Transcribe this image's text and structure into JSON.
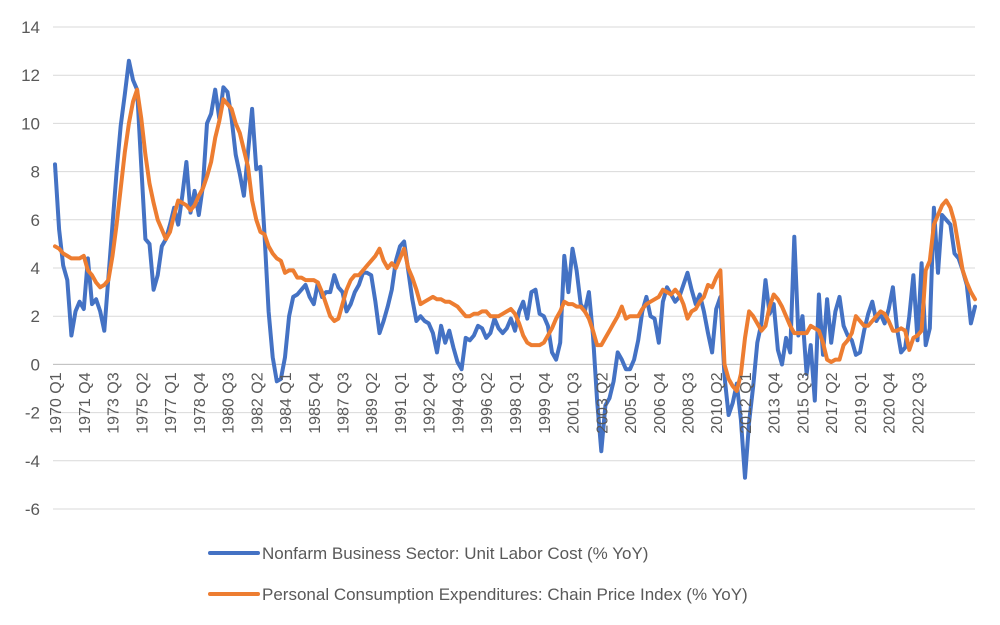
{
  "chart_data": {
    "type": "line",
    "title": "",
    "xlabel": "",
    "ylabel": "",
    "ylim": [
      -6,
      14
    ],
    "y_ticks": [
      -6,
      -4,
      -2,
      0,
      2,
      4,
      6,
      8,
      10,
      12,
      14
    ],
    "grid": true,
    "legend_position": "bottom",
    "x_tick_labels": [
      "1970 Q1",
      "1971 Q4",
      "1973 Q3",
      "1975 Q2",
      "1977 Q1",
      "1978 Q4",
      "1980 Q3",
      "1982 Q2",
      "1984 Q1",
      "1985 Q4",
      "1987 Q3",
      "1989 Q2",
      "1991 Q1",
      "1992 Q4",
      "1994 Q3",
      "1996 Q2",
      "1998 Q1",
      "1999 Q4",
      "2001 Q3",
      "2003 Q2",
      "2005 Q1",
      "2006 Q4",
      "2008 Q3",
      "2010 Q2",
      "2012 Q1",
      "2013 Q4",
      "2015 Q3",
      "2017 Q2",
      "2019 Q1",
      "2020 Q4",
      "2022 Q3"
    ],
    "x_start_year": 1970,
    "x_start_quarter": 1,
    "series": [
      {
        "name": "Nonfarm Business Sector: Unit Labor Cost (% YoY)",
        "color": "#4472C4",
        "values": [
          8.3,
          5.6,
          4.1,
          3.5,
          1.2,
          2.2,
          2.6,
          2.3,
          4.4,
          2.5,
          2.7,
          2.2,
          1.4,
          3.6,
          5.8,
          8.0,
          9.9,
          11.2,
          12.6,
          11.8,
          11.4,
          8.2,
          5.2,
          5.0,
          3.1,
          3.7,
          4.9,
          5.2,
          5.8,
          6.5,
          5.8,
          7.0,
          8.4,
          6.3,
          7.2,
          6.2,
          7.4,
          10.0,
          10.4,
          11.4,
          10.2,
          11.5,
          11.3,
          10.2,
          8.7,
          7.9,
          7.0,
          8.8,
          10.6,
          8.1,
          8.2,
          5.4,
          2.2,
          0.3,
          -0.7,
          -0.6,
          0.3,
          2.0,
          2.8,
          2.9,
          3.1,
          3.3,
          2.8,
          2.5,
          3.4,
          2.8,
          3.0,
          3.0,
          3.7,
          3.2,
          3.0,
          2.2,
          2.5,
          3.0,
          3.3,
          3.8,
          3.8,
          3.7,
          2.6,
          1.3,
          1.8,
          2.4,
          3.1,
          4.3,
          4.9,
          5.1,
          3.9,
          2.7,
          1.8,
          2.0,
          1.8,
          1.7,
          1.3,
          0.5,
          1.6,
          0.9,
          1.4,
          0.7,
          0.1,
          -0.2,
          1.1,
          1.0,
          1.2,
          1.6,
          1.5,
          1.1,
          1.3,
          1.9,
          1.5,
          1.3,
          1.5,
          1.9,
          1.4,
          2.2,
          2.6,
          1.9,
          3.0,
          3.1,
          2.1,
          2.0,
          1.6,
          0.5,
          0.2,
          0.9,
          4.5,
          3.0,
          4.8,
          3.9,
          2.5,
          2.2,
          3.0,
          1.2,
          -1.5,
          -3.6,
          -1.7,
          -1.4,
          -0.7,
          0.5,
          0.2,
          -0.2,
          -0.2,
          0.2,
          1.0,
          2.2,
          2.8,
          2.0,
          1.9,
          0.9,
          2.6,
          3.2,
          2.9,
          2.6,
          2.8,
          3.3,
          3.8,
          3.1,
          2.5,
          2.9,
          2.2,
          1.3,
          0.5,
          2.3,
          2.8,
          -0.5,
          -2.1,
          -1.6,
          -0.8,
          -2.3,
          -4.7,
          -2.4,
          -0.9,
          0.9,
          1.7,
          3.5,
          2.1,
          2.5,
          0.6,
          0.0,
          1.1,
          0.5,
          5.3,
          1.2,
          2.0,
          -0.4,
          0.8,
          -1.5,
          2.9,
          0.4,
          2.7,
          0.9,
          2.2,
          2.8,
          1.6,
          1.2,
          1.0,
          0.4,
          0.5,
          1.4,
          2.1,
          2.6,
          1.8,
          2.1,
          1.7,
          2.3,
          3.2,
          1.5,
          0.5,
          0.7,
          2.0,
          3.7,
          1.0,
          4.2,
          0.8,
          1.5,
          6.5,
          3.8,
          6.2,
          6.0,
          5.8,
          4.6,
          4.4,
          3.9,
          3.3,
          1.7,
          2.4
        ]
      },
      {
        "name": "Personal Consumption Expenditures: Chain Price Index (% YoY)",
        "color": "#ED7D31",
        "values": [
          4.9,
          4.8,
          4.6,
          4.5,
          4.4,
          4.4,
          4.4,
          4.5,
          3.9,
          3.7,
          3.4,
          3.2,
          3.3,
          3.5,
          4.5,
          5.8,
          7.3,
          8.8,
          10.0,
          10.9,
          11.4,
          10.2,
          8.7,
          7.5,
          6.7,
          6.0,
          5.6,
          5.2,
          5.5,
          6.2,
          6.8,
          6.7,
          6.6,
          6.4,
          6.6,
          7.0,
          7.3,
          7.8,
          8.4,
          9.4,
          10.1,
          11.0,
          10.8,
          10.6,
          10.0,
          9.6,
          8.9,
          8.2,
          6.8,
          6.0,
          5.5,
          5.4,
          4.9,
          4.6,
          4.4,
          4.3,
          3.8,
          3.9,
          3.9,
          3.6,
          3.6,
          3.5,
          3.5,
          3.5,
          3.4,
          3.0,
          2.5,
          2.0,
          1.8,
          1.9,
          2.5,
          3.1,
          3.5,
          3.7,
          3.7,
          3.9,
          4.1,
          4.3,
          4.5,
          4.8,
          4.3,
          4.0,
          4.2,
          4.0,
          4.4,
          4.8,
          4.0,
          3.6,
          3.1,
          2.5,
          2.6,
          2.7,
          2.8,
          2.7,
          2.7,
          2.6,
          2.6,
          2.5,
          2.4,
          2.2,
          2.0,
          2.0,
          2.1,
          2.1,
          2.2,
          2.2,
          2.0,
          2.0,
          2.0,
          2.1,
          2.2,
          2.3,
          2.1,
          1.7,
          1.2,
          0.9,
          0.8,
          0.8,
          0.8,
          0.9,
          1.2,
          1.5,
          1.9,
          2.2,
          2.6,
          2.5,
          2.5,
          2.4,
          2.4,
          2.2,
          1.9,
          1.4,
          0.8,
          0.8,
          1.1,
          1.4,
          1.7,
          2.0,
          2.4,
          1.9,
          2.0,
          2.0,
          2.0,
          2.3,
          2.5,
          2.6,
          2.7,
          2.8,
          3.1,
          3.0,
          2.9,
          3.1,
          2.9,
          2.5,
          1.9,
          2.2,
          2.3,
          2.6,
          2.8,
          3.3,
          3.2,
          3.6,
          3.9,
          0.0,
          -0.6,
          -0.9,
          -1.1,
          -0.4,
          1.1,
          2.2,
          2.0,
          1.7,
          1.4,
          1.6,
          2.4,
          2.9,
          2.7,
          2.4,
          2.0,
          1.6,
          1.3,
          1.3,
          1.3,
          1.3,
          1.6,
          1.5,
          1.4,
          0.9,
          0.2,
          0.1,
          0.2,
          0.2,
          0.8,
          1.0,
          1.3,
          2.0,
          1.8,
          1.6,
          1.6,
          1.8,
          2.0,
          2.2,
          2.1,
          1.8,
          1.4,
          1.4,
          1.5,
          1.4,
          0.6,
          1.1,
          1.2,
          1.4,
          3.9,
          4.3,
          5.8,
          6.2,
          6.6,
          6.8,
          6.5,
          5.9,
          4.9,
          3.9,
          3.4,
          3.0,
          2.7
        ]
      }
    ]
  }
}
